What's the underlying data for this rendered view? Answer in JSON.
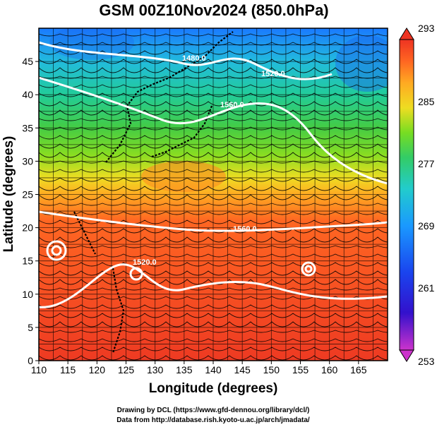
{
  "title": "GSM 00Z10Nov2024 (850.0hPa)",
  "xlabel": "Longitude (degrees)",
  "ylabel": "Latitude  (degrees)",
  "x_ticks": [
    "110",
    "115",
    "120",
    "125",
    "130",
    "135",
    "140",
    "145",
    "150",
    "155",
    "160",
    "165"
  ],
  "y_ticks": [
    "0",
    "5",
    "10",
    "15",
    "20",
    "25",
    "30",
    "35",
    "40",
    "45"
  ],
  "colorbar": {
    "ticks": [
      "253",
      "261",
      "269",
      "277",
      "285",
      "293"
    ],
    "colors": [
      "#cc33cc",
      "#1a1acc",
      "#1a66ff",
      "#22cccc",
      "#33cc66",
      "#66dd22",
      "#ccdd22",
      "#ffaa22",
      "#ff6622",
      "#ee3322"
    ]
  },
  "contour_labels": [
    "1480.0",
    "1520.0",
    "1560.0",
    "1560.0",
    "1520.0"
  ],
  "credits": {
    "line1": "Drawing by DCL (https://www.gfd-dennou.org/library/dcl/)",
    "line2": "Data from http://database.rish.kyoto-u.ac.jp/arch/jmadata/"
  },
  "chart_data": {
    "type": "heatmap",
    "title": "GSM 00Z10Nov2024 (850.0hPa)",
    "xlabel": "Longitude (degrees)",
    "ylabel": "Latitude  (degrees)",
    "xlim": [
      110,
      170
    ],
    "ylim": [
      0,
      50
    ],
    "color_range": [
      253,
      293
    ],
    "colorbar_ticks": [
      253,
      261,
      269,
      277,
      285,
      293
    ],
    "field_bands": [
      {
        "lat_range": [
          0,
          25
        ],
        "approx_value": 290
      },
      {
        "lat_range": [
          25,
          32
        ],
        "approx_value": 286
      },
      {
        "lat_range": [
          32,
          38
        ],
        "approx_value": 279
      },
      {
        "lat_range": [
          38,
          44
        ],
        "approx_value": 274
      },
      {
        "lat_range": [
          44,
          50
        ],
        "approx_value": 268
      }
    ],
    "contours": [
      {
        "label": "1480.0",
        "lon": 129,
        "lat": 45.5
      },
      {
        "label": "1520.0",
        "lon": 152,
        "lat": 44
      },
      {
        "label": "1560.0",
        "lon": 143,
        "lat": 40
      },
      {
        "label": "1560.0",
        "lon": 143,
        "lat": 19
      },
      {
        "label": "1520.0",
        "lon": 128,
        "lat": 15
      }
    ],
    "grid": true
  }
}
